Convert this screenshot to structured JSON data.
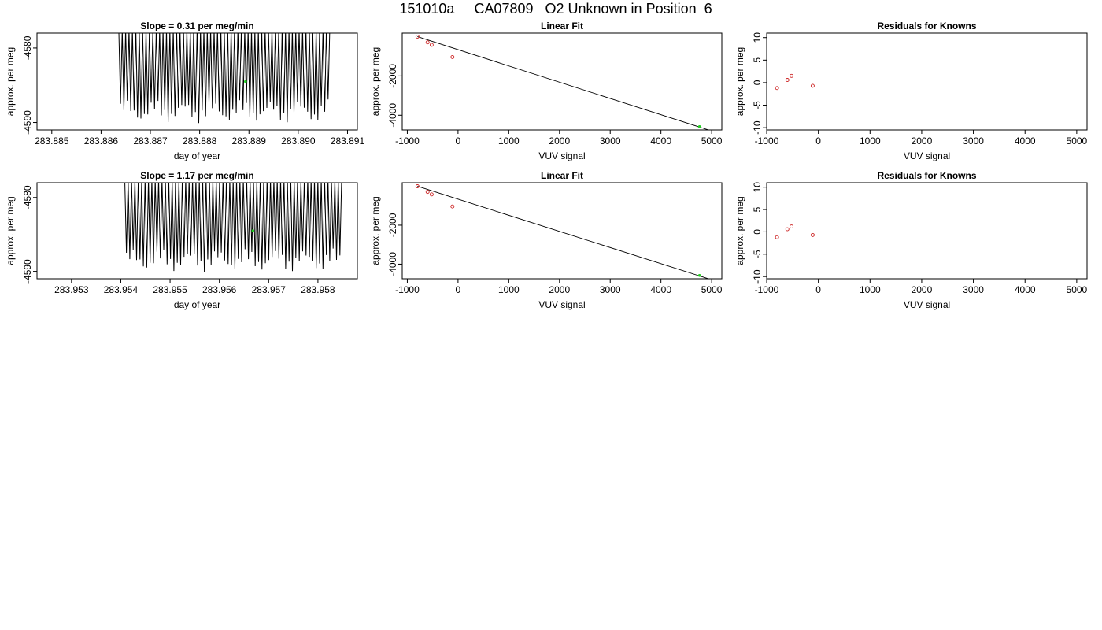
{
  "page_title": "151010a     CA07809   O2 Unknown in Position  6",
  "colors": {
    "line": "#000000",
    "known_point": "#cc2222",
    "unknown_point": "#22cc22",
    "frame": "#000000"
  },
  "chart_data": [
    {
      "type": "line",
      "title": "Slope =  0.31  per meg/min",
      "xlabel": "day of year",
      "ylabel": "approx. per meg",
      "xlim": [
        283.8847,
        283.8912
      ],
      "ylim": [
        -4591,
        -4578
      ],
      "xticks": [
        283.885,
        283.886,
        283.887,
        283.888,
        283.889,
        283.89,
        283.891
      ],
      "xtick_labels": [
        "283.885",
        "283.886",
        "283.887",
        "283.888",
        "283.889",
        "283.890",
        "283.891"
      ],
      "yticks": [
        -4590,
        -4580
      ],
      "ytick_labels": [
        "-4590",
        "-4580"
      ],
      "series": [
        {
          "x_start": 283.88636,
          "x_end": 283.89064,
          "cycles": 62,
          "upper": -4577.5,
          "lower": -4588.5
        }
      ],
      "markers": [
        {
          "x": 283.88893,
          "y": -4584.5,
          "role": "unknown"
        }
      ]
    },
    {
      "type": "scatter",
      "title": "Linear Fit",
      "xlabel": "VUV signal",
      "ylabel": "approx. per meg",
      "xlim": [
        -1100,
        5200
      ],
      "ylim": [
        -4750,
        180
      ],
      "xticks": [
        -1000,
        0,
        1000,
        2000,
        3000,
        4000,
        5000
      ],
      "xtick_labels": [
        "-1000",
        "0",
        "1000",
        "2000",
        "3000",
        "4000",
        "5000"
      ],
      "yticks": [
        -4000,
        -2000
      ],
      "ytick_labels": [
        "-4000",
        "-2000"
      ],
      "points": [
        {
          "x": -800,
          "y": -2
        },
        {
          "x": -600,
          "y": -290
        },
        {
          "x": -520,
          "y": -420
        },
        {
          "x": -110,
          "y": -1040
        }
      ],
      "unknown_points": [
        {
          "x": 4760,
          "y": -4580
        }
      ],
      "fit_line": {
        "x": [
          -800,
          4950
        ],
        "y": [
          0,
          -4760
        ]
      }
    },
    {
      "type": "scatter",
      "title": "Residuals for Knowns",
      "xlabel": "VUV signal",
      "ylabel": "approx. per meg",
      "xlim": [
        -1000,
        5200
      ],
      "ylim": [
        -10.5,
        11
      ],
      "xticks": [
        -1000,
        0,
        1000,
        2000,
        3000,
        4000,
        5000
      ],
      "xtick_labels": [
        "-1000",
        "0",
        "1000",
        "2000",
        "3000",
        "4000",
        "5000"
      ],
      "yticks": [
        -10,
        -5,
        0,
        5,
        10
      ],
      "ytick_labels": [
        "-10",
        "-5",
        "0",
        "5",
        "10"
      ],
      "points": [
        {
          "x": -800,
          "y": -1.2
        },
        {
          "x": -600,
          "y": 0.6
        },
        {
          "x": -520,
          "y": 1.5
        },
        {
          "x": -110,
          "y": -0.7
        }
      ]
    },
    {
      "type": "line",
      "title": "Slope =  1.17  per meg/min",
      "xlabel": "day of year",
      "ylabel": "approx. per meg",
      "xlim": [
        283.9523,
        283.9588
      ],
      "ylim": [
        -4591,
        -4578
      ],
      "xticks": [
        283.953,
        283.954,
        283.955,
        283.956,
        283.957,
        283.958
      ],
      "xtick_labels": [
        "283.953",
        "283.954",
        "283.955",
        "283.956",
        "283.957",
        "283.958"
      ],
      "yticks": [
        -4590,
        -4580
      ],
      "ytick_labels": [
        "-4590",
        "-4580"
      ],
      "series": [
        {
          "x_start": 283.95408,
          "x_end": 283.95848,
          "cycles": 64,
          "upper": -4577.5,
          "lower": -4588.5
        }
      ],
      "markers": [
        {
          "x": 283.95668,
          "y": -4584.5,
          "role": "unknown"
        }
      ]
    },
    {
      "type": "scatter",
      "title": "Linear Fit",
      "xlabel": "VUV signal",
      "ylabel": "approx. per meg",
      "xlim": [
        -1100,
        5200
      ],
      "ylim": [
        -4750,
        180
      ],
      "xticks": [
        -1000,
        0,
        1000,
        2000,
        3000,
        4000,
        5000
      ],
      "xtick_labels": [
        "-1000",
        "0",
        "1000",
        "2000",
        "3000",
        "4000",
        "5000"
      ],
      "yticks": [
        -4000,
        -2000
      ],
      "ytick_labels": [
        "-4000",
        "-2000"
      ],
      "points": [
        {
          "x": -800,
          "y": -2
        },
        {
          "x": -600,
          "y": -290
        },
        {
          "x": -520,
          "y": -420
        },
        {
          "x": -110,
          "y": -1040
        }
      ],
      "unknown_points": [
        {
          "x": 4760,
          "y": -4580
        }
      ],
      "fit_line": {
        "x": [
          -800,
          4950
        ],
        "y": [
          0,
          -4760
        ]
      }
    },
    {
      "type": "scatter",
      "title": "Residuals for Knowns",
      "xlabel": "VUV signal",
      "ylabel": "approx. per meg",
      "xlim": [
        -1000,
        5200
      ],
      "ylim": [
        -10.5,
        11
      ],
      "xticks": [
        -1000,
        0,
        1000,
        2000,
        3000,
        4000,
        5000
      ],
      "xtick_labels": [
        "-1000",
        "0",
        "1000",
        "2000",
        "3000",
        "4000",
        "5000"
      ],
      "yticks": [
        -10,
        -5,
        0,
        5,
        10
      ],
      "ytick_labels": [
        "-10",
        "-5",
        "0",
        "5",
        "10"
      ],
      "points": [
        {
          "x": -800,
          "y": -1.2
        },
        {
          "x": -600,
          "y": 0.6
        },
        {
          "x": -520,
          "y": 1.2
        },
        {
          "x": -110,
          "y": -0.7
        }
      ]
    }
  ]
}
